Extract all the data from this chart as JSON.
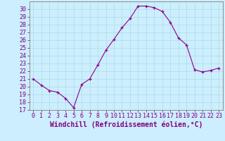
{
  "x": [
    0,
    1,
    2,
    3,
    4,
    5,
    6,
    7,
    8,
    9,
    10,
    11,
    12,
    13,
    14,
    15,
    16,
    17,
    18,
    19,
    20,
    21,
    22,
    23
  ],
  "y": [
    21.0,
    20.2,
    19.5,
    19.3,
    18.5,
    17.3,
    20.3,
    21.0,
    22.8,
    24.7,
    26.1,
    27.6,
    28.8,
    30.4,
    30.4,
    30.2,
    29.7,
    28.3,
    26.3,
    25.4,
    22.2,
    21.9,
    22.1,
    22.4
  ],
  "line_color": "#8b008b",
  "marker": "+",
  "background_color": "#cceeff",
  "grid_color": "#aadddd",
  "xlabel": "Windchill (Refroidissement éolien,°C)",
  "ylim": [
    17,
    31
  ],
  "xlim_min": -0.5,
  "xlim_max": 23.5,
  "yticks": [
    17,
    18,
    19,
    20,
    21,
    22,
    23,
    24,
    25,
    26,
    27,
    28,
    29,
    30
  ],
  "xticks": [
    0,
    1,
    2,
    3,
    4,
    5,
    6,
    7,
    8,
    9,
    10,
    11,
    12,
    13,
    14,
    15,
    16,
    17,
    18,
    19,
    20,
    21,
    22,
    23
  ],
  "tick_color": "#800080",
  "axis_color": "#808080",
  "label_fontsize": 7,
  "tick_fontsize": 6,
  "fig_width": 3.2,
  "fig_height": 2.0,
  "dpi": 100
}
